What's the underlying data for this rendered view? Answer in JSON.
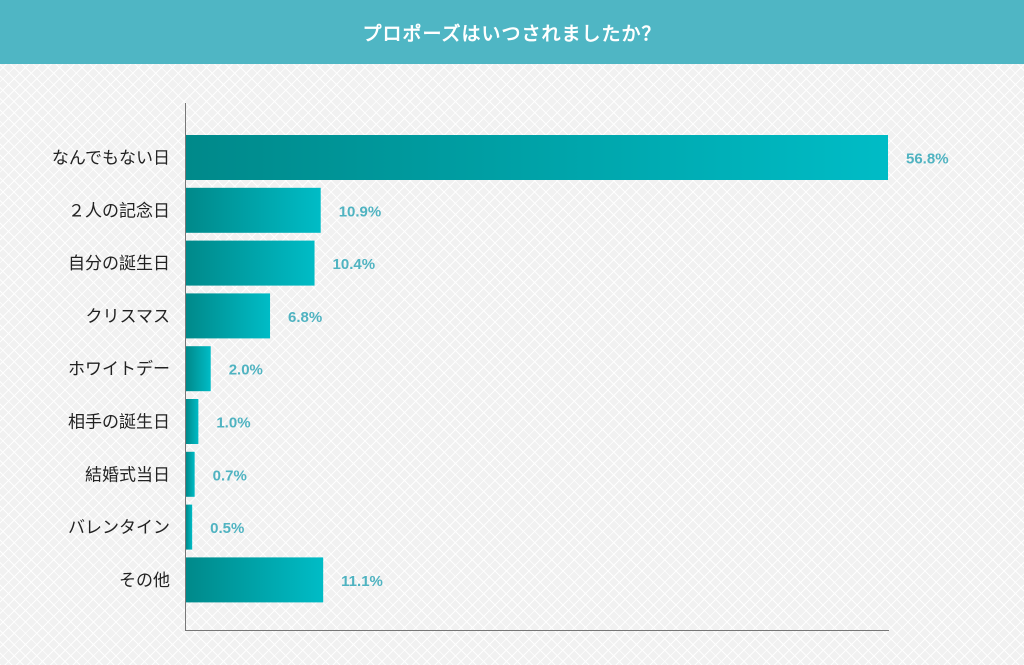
{
  "chart_data": {
    "type": "bar",
    "orientation": "horizontal",
    "title": "プロポーズはいつされましたか？",
    "categories": [
      "なんでもない日",
      "２人の記念日",
      "自分の誕生日",
      "クリスマス",
      "ホワイトデー",
      "相手の誕生日",
      "結婚式当日",
      "バレンタイン",
      "その他"
    ],
    "values": [
      56.8,
      10.9,
      10.4,
      6.8,
      2.0,
      1.0,
      0.7,
      0.5,
      11.1
    ],
    "value_labels": [
      "56.8%",
      "10.9%",
      "10.4%",
      "6.8%",
      "2.0%",
      "1.0%",
      "0.7%",
      "0.5%",
      "11.1%"
    ],
    "unit": "%",
    "xlim": [
      0,
      56.8
    ],
    "grid": false,
    "colors": {
      "header": "#4fb6c4",
      "bar_start": "#00898a",
      "bar_end": "#00bcc6",
      "value_label": "#4fb3c1"
    }
  }
}
